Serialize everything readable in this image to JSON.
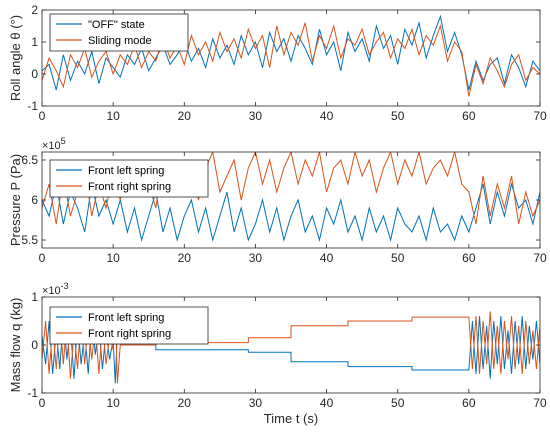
{
  "chart_data": [
    {
      "type": "line",
      "ylabel": "Roll angle θ (°)",
      "xlim": [
        0,
        70
      ],
      "ylim": [
        -1,
        2
      ],
      "yticks": [
        -1,
        0,
        1,
        2
      ],
      "xticks": [
        0,
        10,
        20,
        30,
        40,
        50,
        60,
        70
      ],
      "legend": "top-left",
      "series": [
        {
          "name": "\"OFF\" state",
          "color": "#0072BD",
          "x": [
            0,
            1,
            2,
            3,
            4,
            5,
            6,
            7,
            8,
            9,
            10,
            11,
            12,
            13,
            14,
            15,
            16,
            17,
            18,
            19,
            20,
            21,
            22,
            23,
            24,
            25,
            26,
            27,
            28,
            29,
            30,
            31,
            32,
            33,
            34,
            35,
            36,
            37,
            38,
            39,
            40,
            41,
            42,
            43,
            44,
            45,
            46,
            47,
            48,
            49,
            50,
            51,
            52,
            53,
            54,
            55,
            56,
            57,
            58,
            59,
            60,
            61,
            62,
            63,
            64,
            65,
            66,
            67,
            68,
            69,
            70
          ],
          "y": [
            0.1,
            0.3,
            -0.5,
            0.6,
            -0.2,
            0.4,
            0.0,
            0.7,
            -0.3,
            0.5,
            0.2,
            -0.1,
            0.6,
            0.3,
            0.8,
            0.1,
            0.5,
            0.9,
            0.3,
            0.6,
            1.0,
            0.4,
            0.8,
            0.2,
            1.1,
            0.5,
            0.9,
            0.3,
            1.2,
            0.6,
            1.0,
            0.2,
            1.3,
            0.7,
            1.1,
            0.4,
            1.2,
            0.8,
            0.3,
            1.4,
            0.6,
            1.0,
            0.1,
            1.3,
            0.7,
            1.1,
            0.4,
            1.5,
            0.8,
            1.2,
            0.3,
            1.4,
            0.9,
            1.6,
            0.5,
            1.2,
            1.8,
            0.7,
            1.3,
            0.6,
            -0.5,
            0.4,
            -0.2,
            0.3,
            0.5,
            -0.3,
            0.6,
            0.2,
            -0.4,
            0.4,
            0.1
          ]
        },
        {
          "name": "Sliding mode",
          "color": "#D95319",
          "x": [
            0,
            1,
            2,
            3,
            4,
            5,
            6,
            7,
            8,
            9,
            10,
            11,
            12,
            13,
            14,
            15,
            16,
            17,
            18,
            19,
            20,
            21,
            22,
            23,
            24,
            25,
            26,
            27,
            28,
            29,
            30,
            31,
            32,
            33,
            34,
            35,
            36,
            37,
            38,
            39,
            40,
            41,
            42,
            43,
            44,
            45,
            46,
            47,
            48,
            49,
            50,
            51,
            52,
            53,
            54,
            55,
            56,
            57,
            58,
            59,
            60,
            61,
            62,
            63,
            64,
            65,
            66,
            67,
            68,
            69,
            70
          ],
          "y": [
            -0.2,
            0.5,
            0.1,
            -0.4,
            0.6,
            0.2,
            0.8,
            -0.1,
            0.4,
            0.7,
            0.0,
            0.6,
            0.3,
            0.9,
            0.2,
            0.7,
            0.4,
            1.1,
            0.5,
            0.9,
            0.3,
            1.2,
            0.6,
            1.0,
            0.4,
            1.3,
            0.7,
            1.1,
            0.5,
            1.4,
            0.8,
            1.2,
            0.2,
            1.5,
            0.6,
            1.3,
            0.9,
            1.6,
            0.4,
            1.2,
            0.8,
            1.5,
            0.5,
            1.1,
            0.9,
            1.4,
            0.6,
            1.0,
            1.3,
            0.5,
            1.1,
            0.8,
            1.4,
            0.6,
            1.2,
            0.9,
            1.5,
            0.4,
            1.0,
            0.7,
            -0.7,
            0.3,
            -0.3,
            0.5,
            0.1,
            -0.4,
            0.3,
            0.6,
            -0.2,
            0.2,
            0.0
          ]
        }
      ]
    },
    {
      "type": "line",
      "ylabel": "Pressure P (Pa)",
      "exponent": "×10",
      "exponent_power": "5",
      "xlim": [
        0,
        70
      ],
      "ylim": [
        5.4,
        6.6
      ],
      "yticks": [
        5.5,
        6,
        6.5
      ],
      "xticks": [
        0,
        10,
        20,
        30,
        40,
        50,
        60,
        70
      ],
      "legend": "top-left",
      "series": [
        {
          "name": "Front left spring",
          "color": "#0072BD",
          "x": [
            0,
            1,
            2,
            3,
            4,
            5,
            6,
            7,
            8,
            9,
            10,
            11,
            12,
            13,
            14,
            15,
            16,
            17,
            18,
            19,
            20,
            21,
            22,
            23,
            24,
            25,
            26,
            27,
            28,
            29,
            30,
            31,
            32,
            33,
            34,
            35,
            36,
            37,
            38,
            39,
            40,
            41,
            42,
            43,
            44,
            45,
            46,
            47,
            48,
            49,
            50,
            51,
            52,
            53,
            54,
            55,
            56,
            57,
            58,
            59,
            60,
            61,
            62,
            63,
            64,
            65,
            66,
            67,
            68,
            69,
            70
          ],
          "y": [
            6.0,
            5.8,
            6.2,
            5.7,
            6.1,
            5.9,
            5.6,
            6.2,
            5.8,
            6.0,
            5.7,
            6.0,
            5.6,
            5.9,
            5.5,
            5.8,
            6.1,
            5.6,
            5.9,
            5.5,
            5.8,
            6.0,
            5.6,
            5.9,
            5.5,
            5.8,
            6.1,
            5.6,
            5.9,
            5.5,
            5.7,
            6.0,
            5.6,
            5.9,
            5.5,
            5.8,
            6.0,
            5.6,
            5.8,
            5.5,
            5.9,
            5.7,
            6.0,
            5.6,
            5.8,
            5.5,
            5.9,
            5.6,
            5.8,
            5.5,
            5.9,
            5.7,
            5.6,
            5.8,
            5.5,
            5.9,
            5.6,
            5.7,
            5.5,
            5.8,
            5.6,
            5.9,
            6.2,
            5.7,
            6.1,
            5.8,
            6.2,
            5.9,
            6.0,
            5.7,
            6.1
          ]
        },
        {
          "name": "Front right spring",
          "color": "#D95319",
          "x": [
            0,
            1,
            2,
            3,
            4,
            5,
            6,
            7,
            8,
            9,
            10,
            11,
            12,
            13,
            14,
            15,
            16,
            17,
            18,
            19,
            20,
            21,
            22,
            23,
            24,
            25,
            26,
            27,
            28,
            29,
            30,
            31,
            32,
            33,
            34,
            35,
            36,
            37,
            38,
            39,
            40,
            41,
            42,
            43,
            44,
            45,
            46,
            47,
            48,
            49,
            50,
            51,
            52,
            53,
            54,
            55,
            56,
            57,
            58,
            59,
            60,
            61,
            62,
            63,
            64,
            65,
            66,
            67,
            68,
            69,
            70
          ],
          "y": [
            5.9,
            6.2,
            5.7,
            6.3,
            5.8,
            6.1,
            6.4,
            5.8,
            6.2,
            5.9,
            6.3,
            6.0,
            6.5,
            6.1,
            6.4,
            6.2,
            5.9,
            6.5,
            6.1,
            6.4,
            6.2,
            6.5,
            6.0,
            6.4,
            6.6,
            6.1,
            6.3,
            6.5,
            6.0,
            6.4,
            6.6,
            6.2,
            6.5,
            6.1,
            6.4,
            6.6,
            6.2,
            6.5,
            6.3,
            6.6,
            6.1,
            6.4,
            6.5,
            6.2,
            6.6,
            6.3,
            6.5,
            6.1,
            6.4,
            6.6,
            6.2,
            6.5,
            6.3,
            6.6,
            6.2,
            6.4,
            6.5,
            6.3,
            6.6,
            6.2,
            6.1,
            5.7,
            6.3,
            5.8,
            6.2,
            5.9,
            6.3,
            5.7,
            6.1,
            5.8,
            6.0
          ]
        }
      ]
    },
    {
      "type": "line",
      "xlabel": "Time t (s)",
      "ylabel": "Mass flow q (kg)",
      "exponent": "×10",
      "exponent_power": "-3",
      "xlim": [
        0,
        70
      ],
      "ylim": [
        -1,
        1
      ],
      "yticks": [
        -1,
        0,
        1
      ],
      "xticks": [
        0,
        10,
        20,
        30,
        40,
        50,
        60,
        70
      ],
      "legend": "top-left",
      "series": [
        {
          "name": "Front left spring",
          "color": "#0072BD",
          "x": [
            0,
            0.5,
            1,
            1.5,
            2,
            2.5,
            3,
            3.5,
            4,
            4.5,
            5,
            5.5,
            6,
            6.5,
            7,
            7.5,
            8,
            8.5,
            9,
            9.5,
            10,
            10.3,
            10.6,
            11,
            16,
            16.01,
            29,
            29.01,
            35,
            35.01,
            43,
            43.01,
            52,
            52.01,
            60,
            60.5,
            61,
            61.5,
            62,
            62.5,
            63,
            63.5,
            64,
            64.5,
            65,
            65.5,
            66,
            66.5,
            67,
            67.5,
            68,
            68.5,
            69,
            69.5,
            70
          ],
          "y": [
            0.2,
            -0.4,
            0.5,
            -0.6,
            0.3,
            -0.5,
            0.6,
            -0.3,
            0.4,
            -0.7,
            0.5,
            -0.4,
            0.3,
            -0.6,
            0.6,
            -0.2,
            0.4,
            -0.5,
            0.3,
            -0.3,
            0.1,
            -0.8,
            0.3,
            0.0,
            0.0,
            -0.1,
            -0.1,
            -0.15,
            -0.15,
            -0.35,
            -0.35,
            -0.45,
            -0.45,
            -0.52,
            -0.52,
            0.5,
            -0.6,
            0.6,
            -0.5,
            0.4,
            -0.7,
            0.5,
            -0.4,
            0.6,
            -0.5,
            0.3,
            -0.6,
            0.5,
            -0.4,
            0.6,
            -0.5,
            0.4,
            -0.3,
            0.5,
            -0.4
          ]
        },
        {
          "name": "Front right spring",
          "color": "#D95319",
          "x": [
            0,
            0.5,
            1,
            1.5,
            2,
            2.5,
            3,
            3.5,
            4,
            4.5,
            5,
            5.5,
            6,
            6.5,
            7,
            7.5,
            8,
            8.5,
            9,
            9.5,
            10,
            10.3,
            10.6,
            11,
            16,
            16.01,
            29,
            29.01,
            35,
            35.01,
            43,
            43.01,
            52,
            52.01,
            60,
            60.5,
            61,
            61.5,
            62,
            62.5,
            63,
            63.5,
            64,
            64.5,
            65,
            65.5,
            66,
            66.5,
            67,
            67.5,
            68,
            68.5,
            69,
            69.5,
            70
          ],
          "y": [
            -0.3,
            0.5,
            -0.6,
            0.4,
            -0.5,
            0.6,
            -0.4,
            0.5,
            -0.7,
            0.3,
            -0.5,
            0.6,
            -0.4,
            0.5,
            -0.3,
            0.4,
            -0.6,
            0.5,
            -0.4,
            0.2,
            -0.1,
            0.7,
            -0.8,
            0.0,
            0.0,
            0.05,
            0.05,
            0.15,
            0.15,
            0.4,
            0.4,
            0.5,
            0.5,
            0.58,
            0.58,
            -0.5,
            0.6,
            -0.6,
            0.5,
            -0.4,
            0.7,
            -0.5,
            0.4,
            -0.6,
            0.5,
            -0.3,
            0.6,
            -0.5,
            0.4,
            -0.6,
            0.5,
            -0.4,
            0.3,
            -0.5,
            0.4
          ]
        }
      ]
    }
  ]
}
